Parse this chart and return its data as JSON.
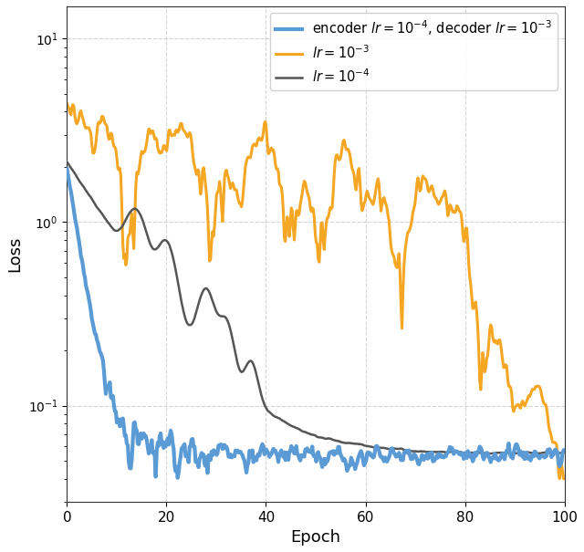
{
  "title": "",
  "xlabel": "Epoch",
  "ylabel": "Loss",
  "xlim": [
    0,
    100
  ],
  "ylim_log": [
    0.03,
    15
  ],
  "figsize": [
    6.4,
    6.05
  ],
  "dpi": 100,
  "grid_color": "#aaaaaa",
  "grid_style": "--",
  "grid_alpha": 0.5,
  "blue_color": "#5b9bd5",
  "orange_color": "#f5a623",
  "gray_color": "#555555",
  "blue_lw": 3.0,
  "orange_lw": 2.2,
  "gray_lw": 1.8,
  "legend_labels": [
    "encoder $lr = 10^{-4}$, decoder $lr = 10^{-3}$",
    "$lr = 10^{-3}$",
    "$lr = 10^{-4}$"
  ],
  "random_seed": 17,
  "n_points": 500
}
